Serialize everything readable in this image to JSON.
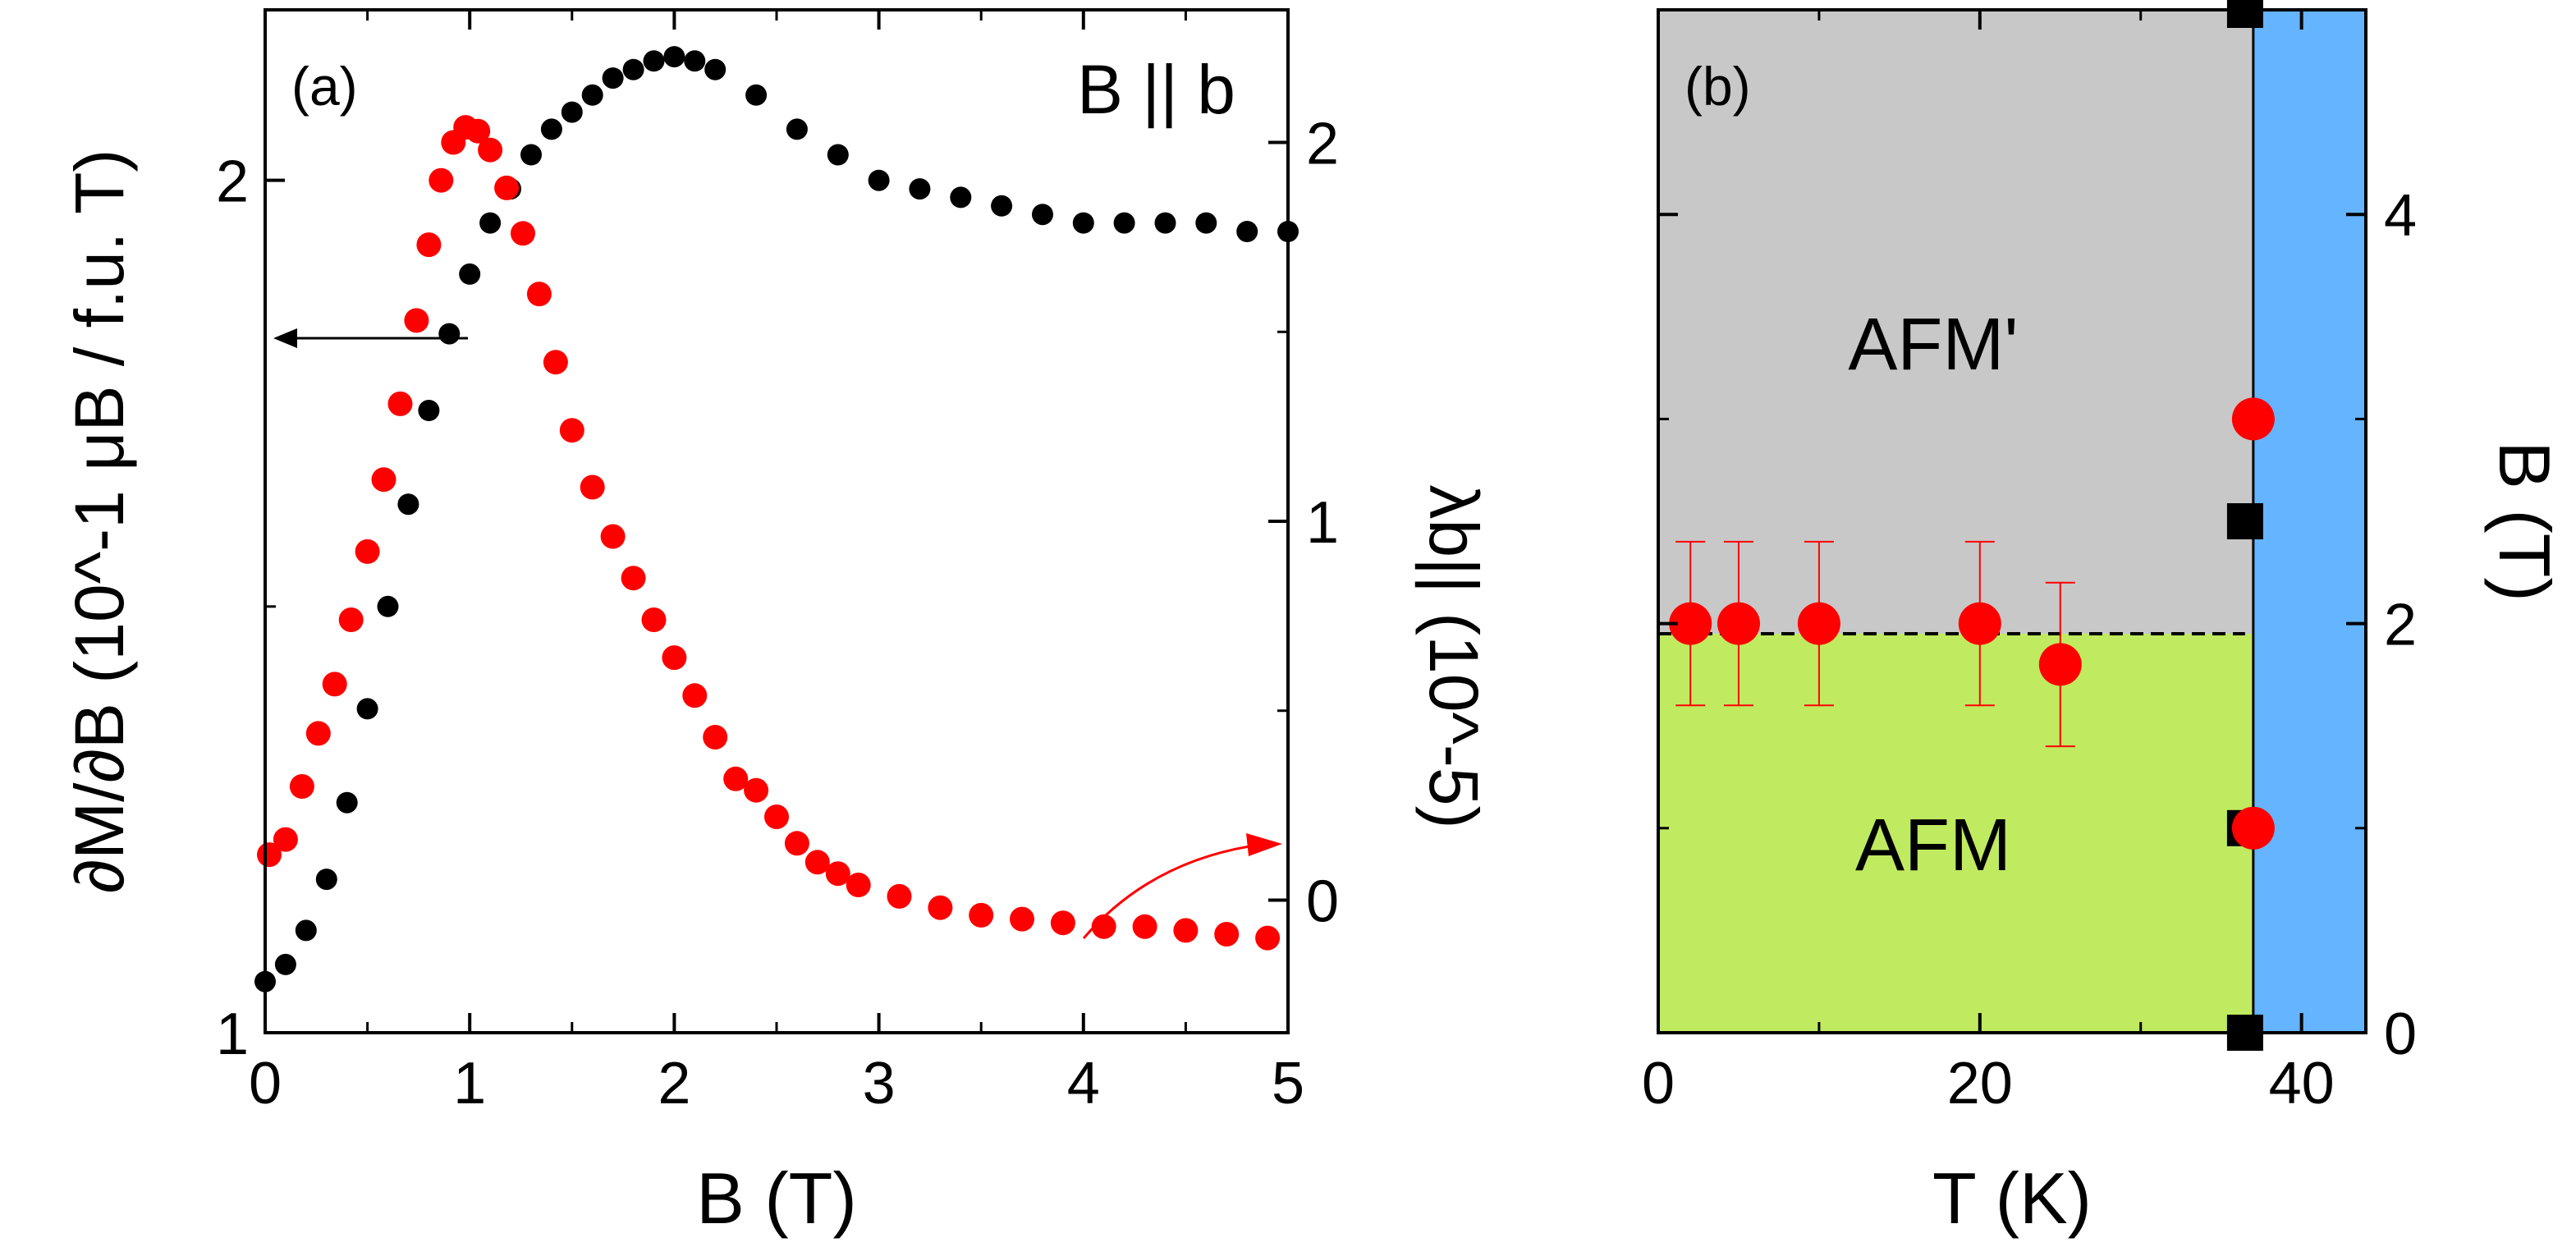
{
  "chart_data": [
    {
      "type": "scatter",
      "panel_label": "(a)",
      "annotation": "B || b",
      "xlabel": "B (T)",
      "ylabel_left": "∂M/∂B (10^-1 μB / f.u. T)",
      "ylabel_right": "λb|| (10^-5)",
      "xlim": [
        0,
        5
      ],
      "ylim_left": [
        1,
        2.2
      ],
      "ylim_right": [
        -0.35,
        2.35
      ],
      "x_ticks": [
        "0",
        "1",
        "2",
        "3",
        "4",
        "5"
      ],
      "y_left_ticks": [
        "1",
        "2"
      ],
      "y_right_ticks": [
        "0",
        "1",
        "2"
      ],
      "series": [
        {
          "name": "dM/dB",
          "axis": "left",
          "color": "#000000",
          "marker": "circle",
          "x": [
            0.0,
            0.1,
            0.2,
            0.3,
            0.4,
            0.5,
            0.6,
            0.7,
            0.8,
            0.9,
            1.0,
            1.1,
            1.2,
            1.3,
            1.4,
            1.5,
            1.6,
            1.7,
            1.8,
            1.9,
            2.0,
            2.1,
            2.2,
            2.4,
            2.6,
            2.8,
            3.0,
            3.2,
            3.4,
            3.6,
            3.8,
            4.0,
            4.2,
            4.4,
            4.6,
            4.8,
            5.0
          ],
          "y": [
            1.06,
            1.08,
            1.12,
            1.18,
            1.27,
            1.38,
            1.5,
            1.62,
            1.73,
            1.82,
            1.89,
            1.95,
            1.99,
            2.03,
            2.06,
            2.08,
            2.1,
            2.12,
            2.13,
            2.14,
            2.145,
            2.14,
            2.13,
            2.1,
            2.06,
            2.03,
            2.0,
            1.99,
            1.98,
            1.97,
            1.96,
            1.95,
            1.95,
            1.95,
            1.95,
            1.94,
            1.94
          ]
        },
        {
          "name": "lambda_b",
          "axis": "right",
          "color": "#ff0000",
          "marker": "circle",
          "x": [
            0.02,
            0.1,
            0.18,
            0.26,
            0.34,
            0.42,
            0.5,
            0.58,
            0.66,
            0.74,
            0.8,
            0.86,
            0.92,
            0.98,
            1.04,
            1.1,
            1.18,
            1.26,
            1.34,
            1.42,
            1.5,
            1.6,
            1.7,
            1.8,
            1.9,
            2.0,
            2.1,
            2.2,
            2.3,
            2.4,
            2.5,
            2.6,
            2.7,
            2.8,
            2.9,
            3.1,
            3.3,
            3.5,
            3.7,
            3.9,
            4.1,
            4.3,
            4.5,
            4.7,
            4.9
          ],
          "y": [
            0.12,
            0.16,
            0.3,
            0.44,
            0.57,
            0.74,
            0.92,
            1.11,
            1.31,
            1.53,
            1.73,
            1.9,
            2.0,
            2.04,
            2.03,
            1.98,
            1.88,
            1.76,
            1.6,
            1.42,
            1.24,
            1.09,
            0.96,
            0.85,
            0.74,
            0.64,
            0.54,
            0.43,
            0.32,
            0.29,
            0.22,
            0.15,
            0.1,
            0.07,
            0.04,
            0.01,
            -0.02,
            -0.04,
            -0.05,
            -0.06,
            -0.07,
            -0.07,
            -0.08,
            -0.09,
            -0.1
          ]
        }
      ]
    },
    {
      "type": "scatter",
      "panel_label": "(b)",
      "xlabel": "T (K)",
      "ylabel": "B (T)",
      "xlim": [
        0,
        44
      ],
      "ylim": [
        0,
        5
      ],
      "x_ticks": [
        "0",
        "20",
        "40"
      ],
      "y_ticks": [
        "0",
        "2",
        "4"
      ],
      "phase_boundary_T": 37,
      "dashed_line_B": 1.95,
      "regions": [
        {
          "label": "AFM'",
          "color": "#c8c8c8"
        },
        {
          "label": "AFM",
          "color": "#c0ea60"
        },
        {
          "label": "",
          "color": "#64b4ff"
        }
      ],
      "series": [
        {
          "name": "circles",
          "color": "#ff0000",
          "marker": "circle",
          "x": [
            2,
            5,
            10,
            20,
            25,
            37,
            37
          ],
          "y": [
            2.0,
            2.0,
            2.0,
            2.0,
            1.8,
            3.0,
            1.0
          ],
          "yerr": [
            0.4,
            0.4,
            0.4,
            0.4,
            0.4,
            0,
            0
          ]
        },
        {
          "name": "squares",
          "color": "#000000",
          "marker": "square",
          "x": [
            37,
            37,
            37,
            37
          ],
          "y": [
            5.0,
            2.5,
            1.0,
            0.0
          ]
        }
      ]
    }
  ]
}
